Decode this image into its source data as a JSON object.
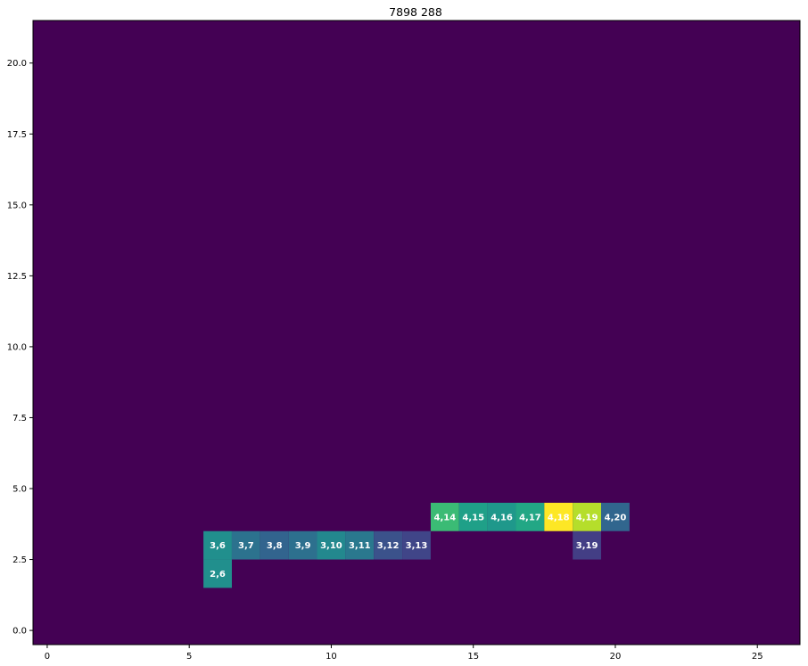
{
  "chart_data": {
    "type": "heatmap",
    "title": "7898 288",
    "xlabel": "",
    "ylabel": "",
    "xlim": [
      -0.5,
      26.5
    ],
    "ylim": [
      -0.5,
      21.5
    ],
    "x_ticks": [
      0,
      5,
      10,
      15,
      20,
      25
    ],
    "x_tick_labels": [
      "0",
      "5",
      "10",
      "15",
      "20",
      "25"
    ],
    "y_ticks": [
      0,
      2.5,
      5,
      7.5,
      10,
      12.5,
      15,
      17.5,
      20
    ],
    "y_tick_labels": [
      "0.0",
      "2.5",
      "5.0",
      "7.5",
      "10.0",
      "12.5",
      "15.0",
      "17.5",
      "20.0"
    ],
    "colormap": "viridis",
    "background_value": 0,
    "background_color": "#440154",
    "grid": false,
    "cells": [
      {
        "row": 2,
        "col": 6,
        "label": "2,6",
        "color": "#218f8d"
      },
      {
        "row": 3,
        "col": 6,
        "label": "3,6",
        "color": "#218f8d"
      },
      {
        "row": 3,
        "col": 7,
        "label": "3,7",
        "color": "#2c728e"
      },
      {
        "row": 3,
        "col": 8,
        "label": "3,8",
        "color": "#32648e"
      },
      {
        "row": 3,
        "col": 9,
        "label": "3,9",
        "color": "#2d708e"
      },
      {
        "row": 3,
        "col": 10,
        "label": "3,10",
        "color": "#23888e"
      },
      {
        "row": 3,
        "col": 11,
        "label": "3,11",
        "color": "#2a788e"
      },
      {
        "row": 3,
        "col": 12,
        "label": "3,12",
        "color": "#3b528b"
      },
      {
        "row": 3,
        "col": 13,
        "label": "3,13",
        "color": "#404588"
      },
      {
        "row": 3,
        "col": 19,
        "label": "3,19",
        "color": "#433e85"
      },
      {
        "row": 4,
        "col": 14,
        "label": "4,14",
        "color": "#3bbb75"
      },
      {
        "row": 4,
        "col": 15,
        "label": "4,15",
        "color": "#1fa088"
      },
      {
        "row": 4,
        "col": 16,
        "label": "4,16",
        "color": "#1f988b"
      },
      {
        "row": 4,
        "col": 17,
        "label": "4,17",
        "color": "#22a785"
      },
      {
        "row": 4,
        "col": 18,
        "label": "4,18",
        "color": "#fde725"
      },
      {
        "row": 4,
        "col": 19,
        "label": "4,19",
        "color": "#b5de2b"
      },
      {
        "row": 4,
        "col": 20,
        "label": "4,20",
        "color": "#31668e"
      }
    ]
  }
}
